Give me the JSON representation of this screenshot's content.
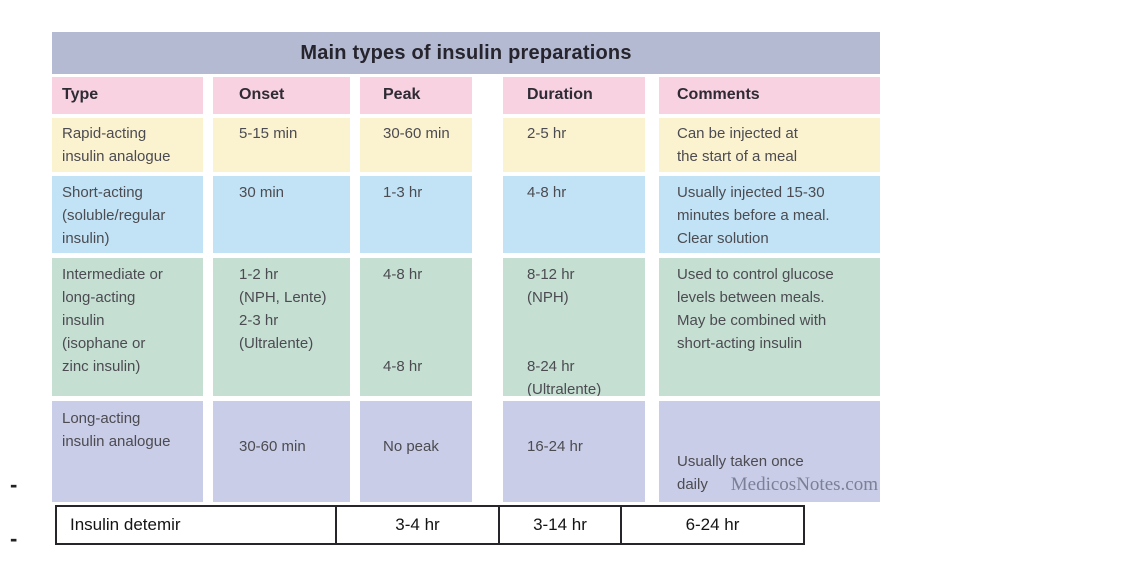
{
  "title": "Main types of insulin preparations",
  "header": {
    "type": "Type",
    "onset": "Onset",
    "peak": "Peak",
    "duration": "Duration",
    "comments": "Comments"
  },
  "rows": [
    {
      "type": "Rapid-acting\ninsulin analogue",
      "onset": "5-15 min",
      "peak": "30-60 min",
      "duration": "2-5 hr",
      "comments": "Can be injected at\nthe start of a meal"
    },
    {
      "type": "Short-acting\n(soluble/regular\ninsulin)",
      "onset": "30 min",
      "peak": "1-3 hr",
      "duration": "4-8 hr",
      "comments": "Usually injected 15-30\nminutes before a meal.\nClear solution"
    },
    {
      "type": "Intermediate or\nlong-acting\ninsulin\n(isophane or\nzinc insulin)",
      "onset": "1-2 hr\n(NPH, Lente)\n2-3 hr\n(Ultralente)",
      "peak": "4-8 hr\n\n\n\n4-8 hr",
      "duration": "8-12 hr\n(NPH)\n\n\n8-24 hr\n(Ultralente)",
      "comments": "Used to control glucose\nlevels between meals.\nMay be combined with\nshort-acting insulin"
    },
    {
      "type": "Long-acting\ninsulin analogue",
      "onset": "30-60 min",
      "peak": "No peak",
      "duration": "16-24 hr",
      "comments": "Usually taken once\ndaily"
    }
  ],
  "watermark": "MedicosNotes.com",
  "detemir_row": {
    "cells": [
      "Insulin detemir",
      "3-4 hr",
      "3-14 hr",
      "6-24 hr"
    ]
  },
  "margin_marks": [
    "-",
    "-"
  ],
  "colors": {
    "title_bg": "#b5bad3",
    "header_bg": "#f8d2e1",
    "rapid_bg": "#fbf2cf",
    "short_bg": "#c2e3f5",
    "intermediate_bg": "#c5dfd2",
    "long_bg": "#c9cde7",
    "body_text": "#4c4b51",
    "heading_text": "#2e2b34",
    "watermark_text": "#7b8096",
    "border_dark": "#26262a"
  }
}
